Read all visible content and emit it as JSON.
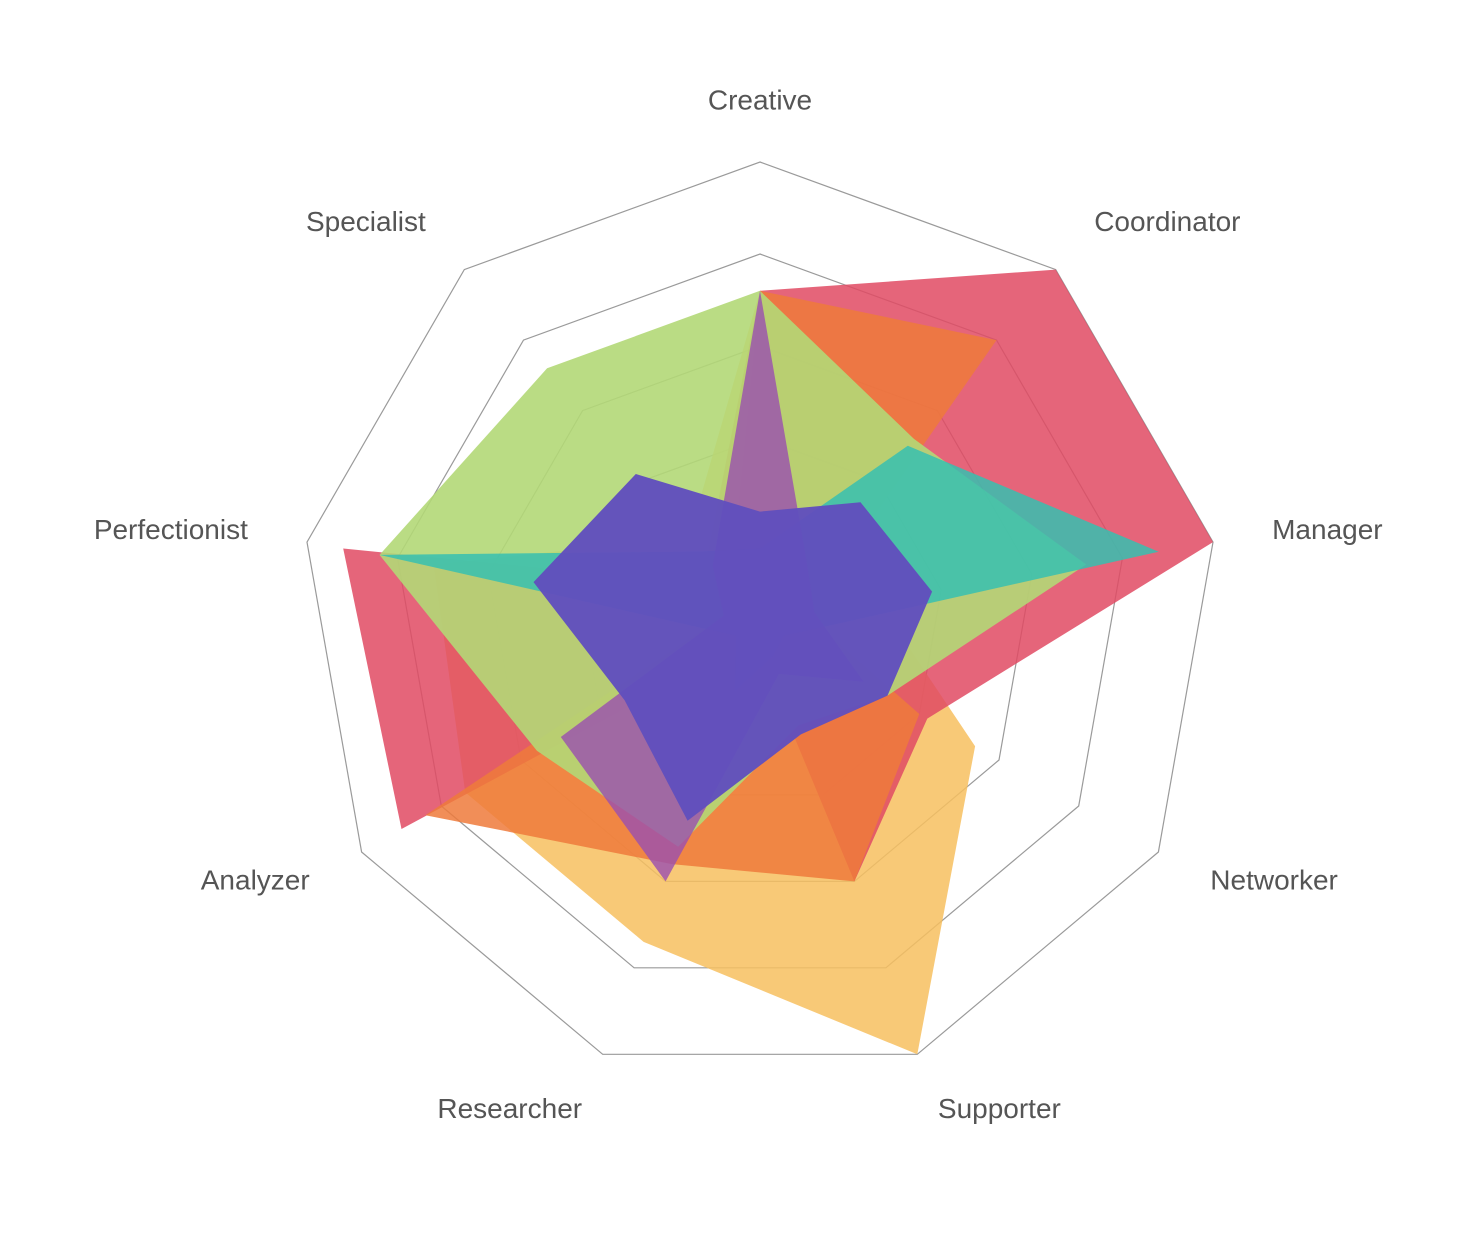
{
  "chart_data": {
    "type": "radar",
    "axes": [
      "Creative",
      "Coordinator",
      "Manager",
      "Networker",
      "Supporter",
      "Researcher",
      "Analyzer",
      "Perfectionist",
      "Specialist"
    ],
    "rmax": 5,
    "rings": 5,
    "series": [
      {
        "color": "#f7bf5f",
        "opacity": 0.85,
        "values": [
          3.6,
          0.8,
          1.3,
          2.7,
          5.0,
          3.7,
          3.7,
          3.6,
          1.2
        ]
      },
      {
        "color": "#e04a63",
        "opacity": 0.85,
        "values": [
          3.6,
          5.0,
          5.0,
          2.1,
          3.0,
          0.2,
          4.5,
          4.6,
          0.5
        ]
      },
      {
        "color": "#ee7a3b",
        "opacity": 0.85,
        "values": [
          3.6,
          4.0,
          0.5,
          2.0,
          3.0,
          2.8,
          4.2,
          0.4,
          0.9
        ]
      },
      {
        "color": "#b2d877",
        "opacity": 0.9,
        "values": [
          3.6,
          2.6,
          3.6,
          1.6,
          1.2,
          2.6,
          2.8,
          4.2,
          3.6
        ]
      },
      {
        "color": "#36c0b0",
        "opacity": 0.85,
        "values": [
          0.8,
          2.5,
          4.4,
          0.3,
          0.4,
          0.8,
          0.3,
          4.2,
          1.0
        ]
      },
      {
        "color": "#9a4fb0",
        "opacity": 0.8,
        "values": [
          3.6,
          0.8,
          0.6,
          1.3,
          0.6,
          3.0,
          2.5,
          0.4,
          0.8
        ]
      },
      {
        "color": "#6150bd",
        "opacity": 0.97,
        "values": [
          1.2,
          1.7,
          1.9,
          1.6,
          1.3,
          2.3,
          1.7,
          2.5,
          2.1
        ]
      }
    ]
  }
}
